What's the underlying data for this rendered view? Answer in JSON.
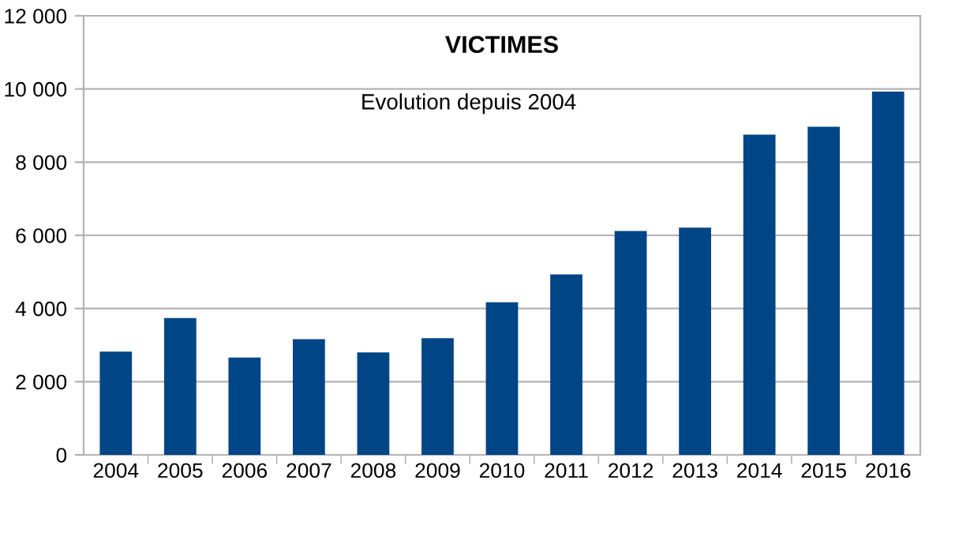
{
  "chart_data": {
    "type": "bar",
    "title": "VICTIMES",
    "subtitle": "Evolution depuis 2004",
    "categories": [
      "2004",
      "2005",
      "2006",
      "2007",
      "2008",
      "2009",
      "2010",
      "2011",
      "2012",
      "2013",
      "2014",
      "2015",
      "2016"
    ],
    "values": [
      2820,
      3740,
      2660,
      3160,
      2800,
      3190,
      4170,
      4930,
      6120,
      6210,
      8750,
      8970,
      9930
    ],
    "color": "#004586",
    "ylim": [
      0,
      12000
    ],
    "yticks": [
      {
        "value": 0,
        "label": "0"
      },
      {
        "value": 2000,
        "label": "2 000"
      },
      {
        "value": 4000,
        "label": "4 000"
      },
      {
        "value": 6000,
        "label": "6 000"
      },
      {
        "value": 8000,
        "label": "8 000"
      },
      {
        "value": 10000,
        "label": "10 000"
      },
      {
        "value": 12000,
        "label": "12 000"
      }
    ],
    "grid": "y",
    "legend": false
  }
}
